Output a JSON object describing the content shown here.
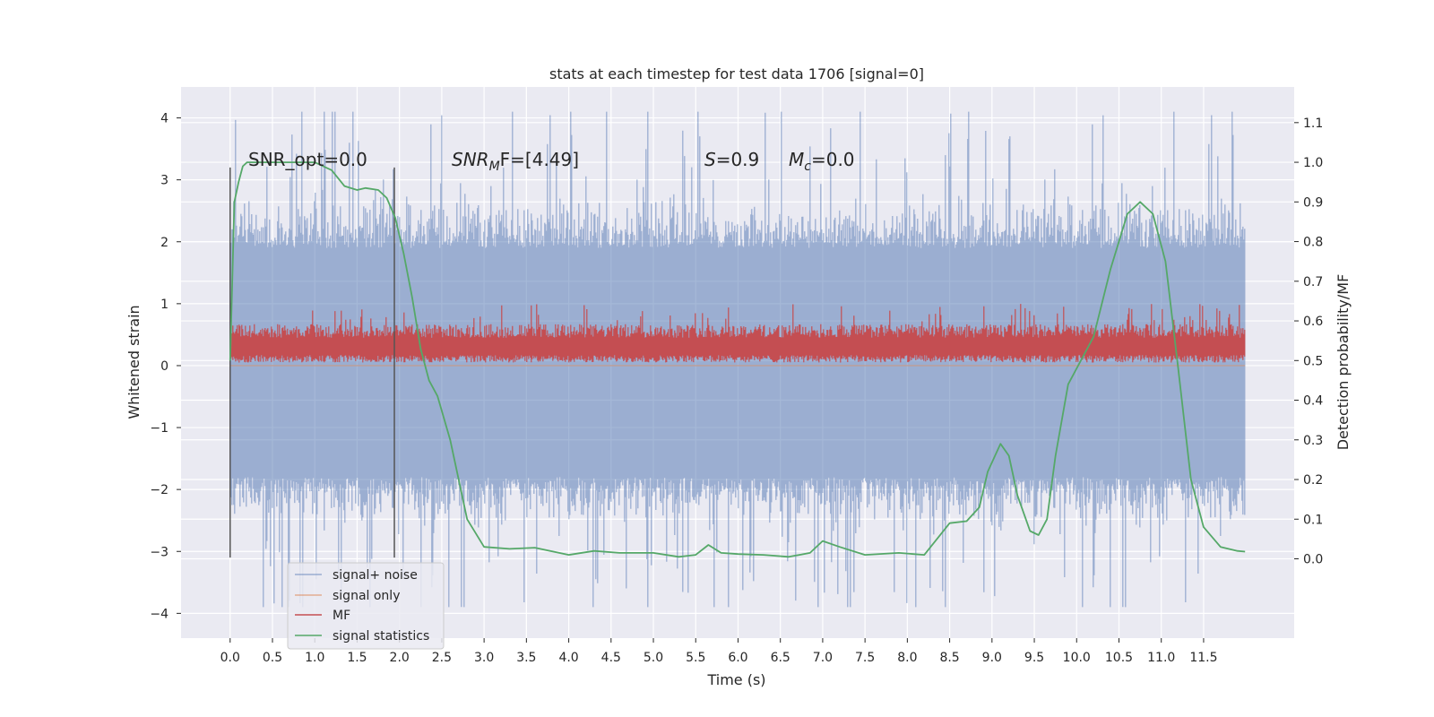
{
  "chart_data": {
    "type": "line",
    "title": "stats at each timestep for test data 1706 [signal=0]",
    "xlabel": "Time (s)",
    "ylabel_left": "Whitened strain",
    "ylabel_right": "Detection probability/MF",
    "xlim": [
      -0.58,
      12.57
    ],
    "ylim_left": [
      -4.4,
      4.5
    ],
    "ylim_right": [
      -0.2,
      1.19
    ],
    "x_ticks": [
      "0.0",
      "0.5",
      "1.0",
      "1.5",
      "2.0",
      "2.5",
      "3.0",
      "3.5",
      "4.0",
      "4.5",
      "5.0",
      "5.5",
      "6.0",
      "6.5",
      "7.0",
      "7.5",
      "8.0",
      "8.5",
      "9.0",
      "9.5",
      "10.0",
      "10.5",
      "11.0",
      "11.5"
    ],
    "y_ticks_left": [
      "4",
      "3",
      "2",
      "1",
      "0",
      "−1",
      "−2",
      "−3",
      "−4"
    ],
    "y_ticks_right": [
      "1.1",
      "1.0",
      "0.9",
      "0.8",
      "0.7",
      "0.6",
      "0.5",
      "0.4",
      "0.3",
      "0.2",
      "0.1",
      "0.0"
    ],
    "grid": true,
    "legend_position": "lower-left",
    "annotations": {
      "snr_opt": "SNR_opt=0.0",
      "snr_mf_label": "SNR",
      "snr_mf_sub": "M",
      "snr_mf_value": "F=[4.49]",
      "s_label": "S",
      "s_value": "=0.9",
      "mc_label": "M",
      "mc_sub": "c",
      "mc_value": "=0.0"
    },
    "vertical_markers_x": [
      0.0,
      1.94
    ],
    "vertical_markers_range": [
      -3.1,
      3.2
    ],
    "series": [
      {
        "name": "signal+ noise",
        "color": "#4c72b0",
        "axis": "left",
        "x_range": [
          0.0,
          11.99
        ],
        "envelope_core": [
          -1.8,
          1.9
        ],
        "envelope_peaks": [
          -3.9,
          4.1
        ]
      },
      {
        "name": "signal only",
        "color": "#dd8452",
        "axis": "left",
        "x_range": [
          0.0,
          11.99
        ],
        "values": [
          0.0,
          0.0
        ]
      },
      {
        "name": "MF",
        "color": "#c44e52",
        "axis": "left",
        "x_range": [
          0.0,
          11.99
        ],
        "band": [
          0.05,
          0.7
        ],
        "peaks_max": 1.0
      },
      {
        "name": "signal statistics",
        "color": "#55a868",
        "axis": "right",
        "x": [
          0.0,
          0.05,
          0.1,
          0.15,
          0.2,
          0.3,
          0.5,
          0.8,
          1.0,
          1.2,
          1.35,
          1.5,
          1.6,
          1.75,
          1.85,
          1.95,
          2.05,
          2.15,
          2.25,
          2.35,
          2.45,
          2.6,
          2.8,
          3.0,
          3.3,
          3.6,
          4.0,
          4.3,
          4.6,
          5.0,
          5.3,
          5.5,
          5.65,
          5.8,
          6.0,
          6.3,
          6.6,
          6.85,
          7.0,
          7.2,
          7.5,
          7.9,
          8.2,
          8.5,
          8.7,
          8.85,
          8.95,
          9.1,
          9.2,
          9.3,
          9.45,
          9.55,
          9.65,
          9.75,
          9.9,
          10.0,
          10.2,
          10.4,
          10.6,
          10.75,
          10.9,
          11.05,
          11.2,
          11.35,
          11.5,
          11.7,
          11.9,
          11.99
        ],
        "values": [
          0.5,
          0.9,
          0.95,
          0.99,
          1.0,
          1.0,
          1.0,
          1.0,
          1.0,
          0.98,
          0.94,
          0.93,
          0.935,
          0.93,
          0.91,
          0.86,
          0.77,
          0.66,
          0.53,
          0.45,
          0.41,
          0.3,
          0.1,
          0.03,
          0.025,
          0.028,
          0.01,
          0.02,
          0.015,
          0.015,
          0.005,
          0.01,
          0.035,
          0.015,
          0.012,
          0.01,
          0.005,
          0.015,
          0.045,
          0.03,
          0.01,
          0.015,
          0.01,
          0.09,
          0.095,
          0.13,
          0.22,
          0.29,
          0.26,
          0.16,
          0.07,
          0.06,
          0.1,
          0.26,
          0.44,
          0.48,
          0.56,
          0.73,
          0.87,
          0.9,
          0.87,
          0.75,
          0.48,
          0.2,
          0.08,
          0.03,
          0.02,
          0.018
        ]
      }
    ]
  }
}
